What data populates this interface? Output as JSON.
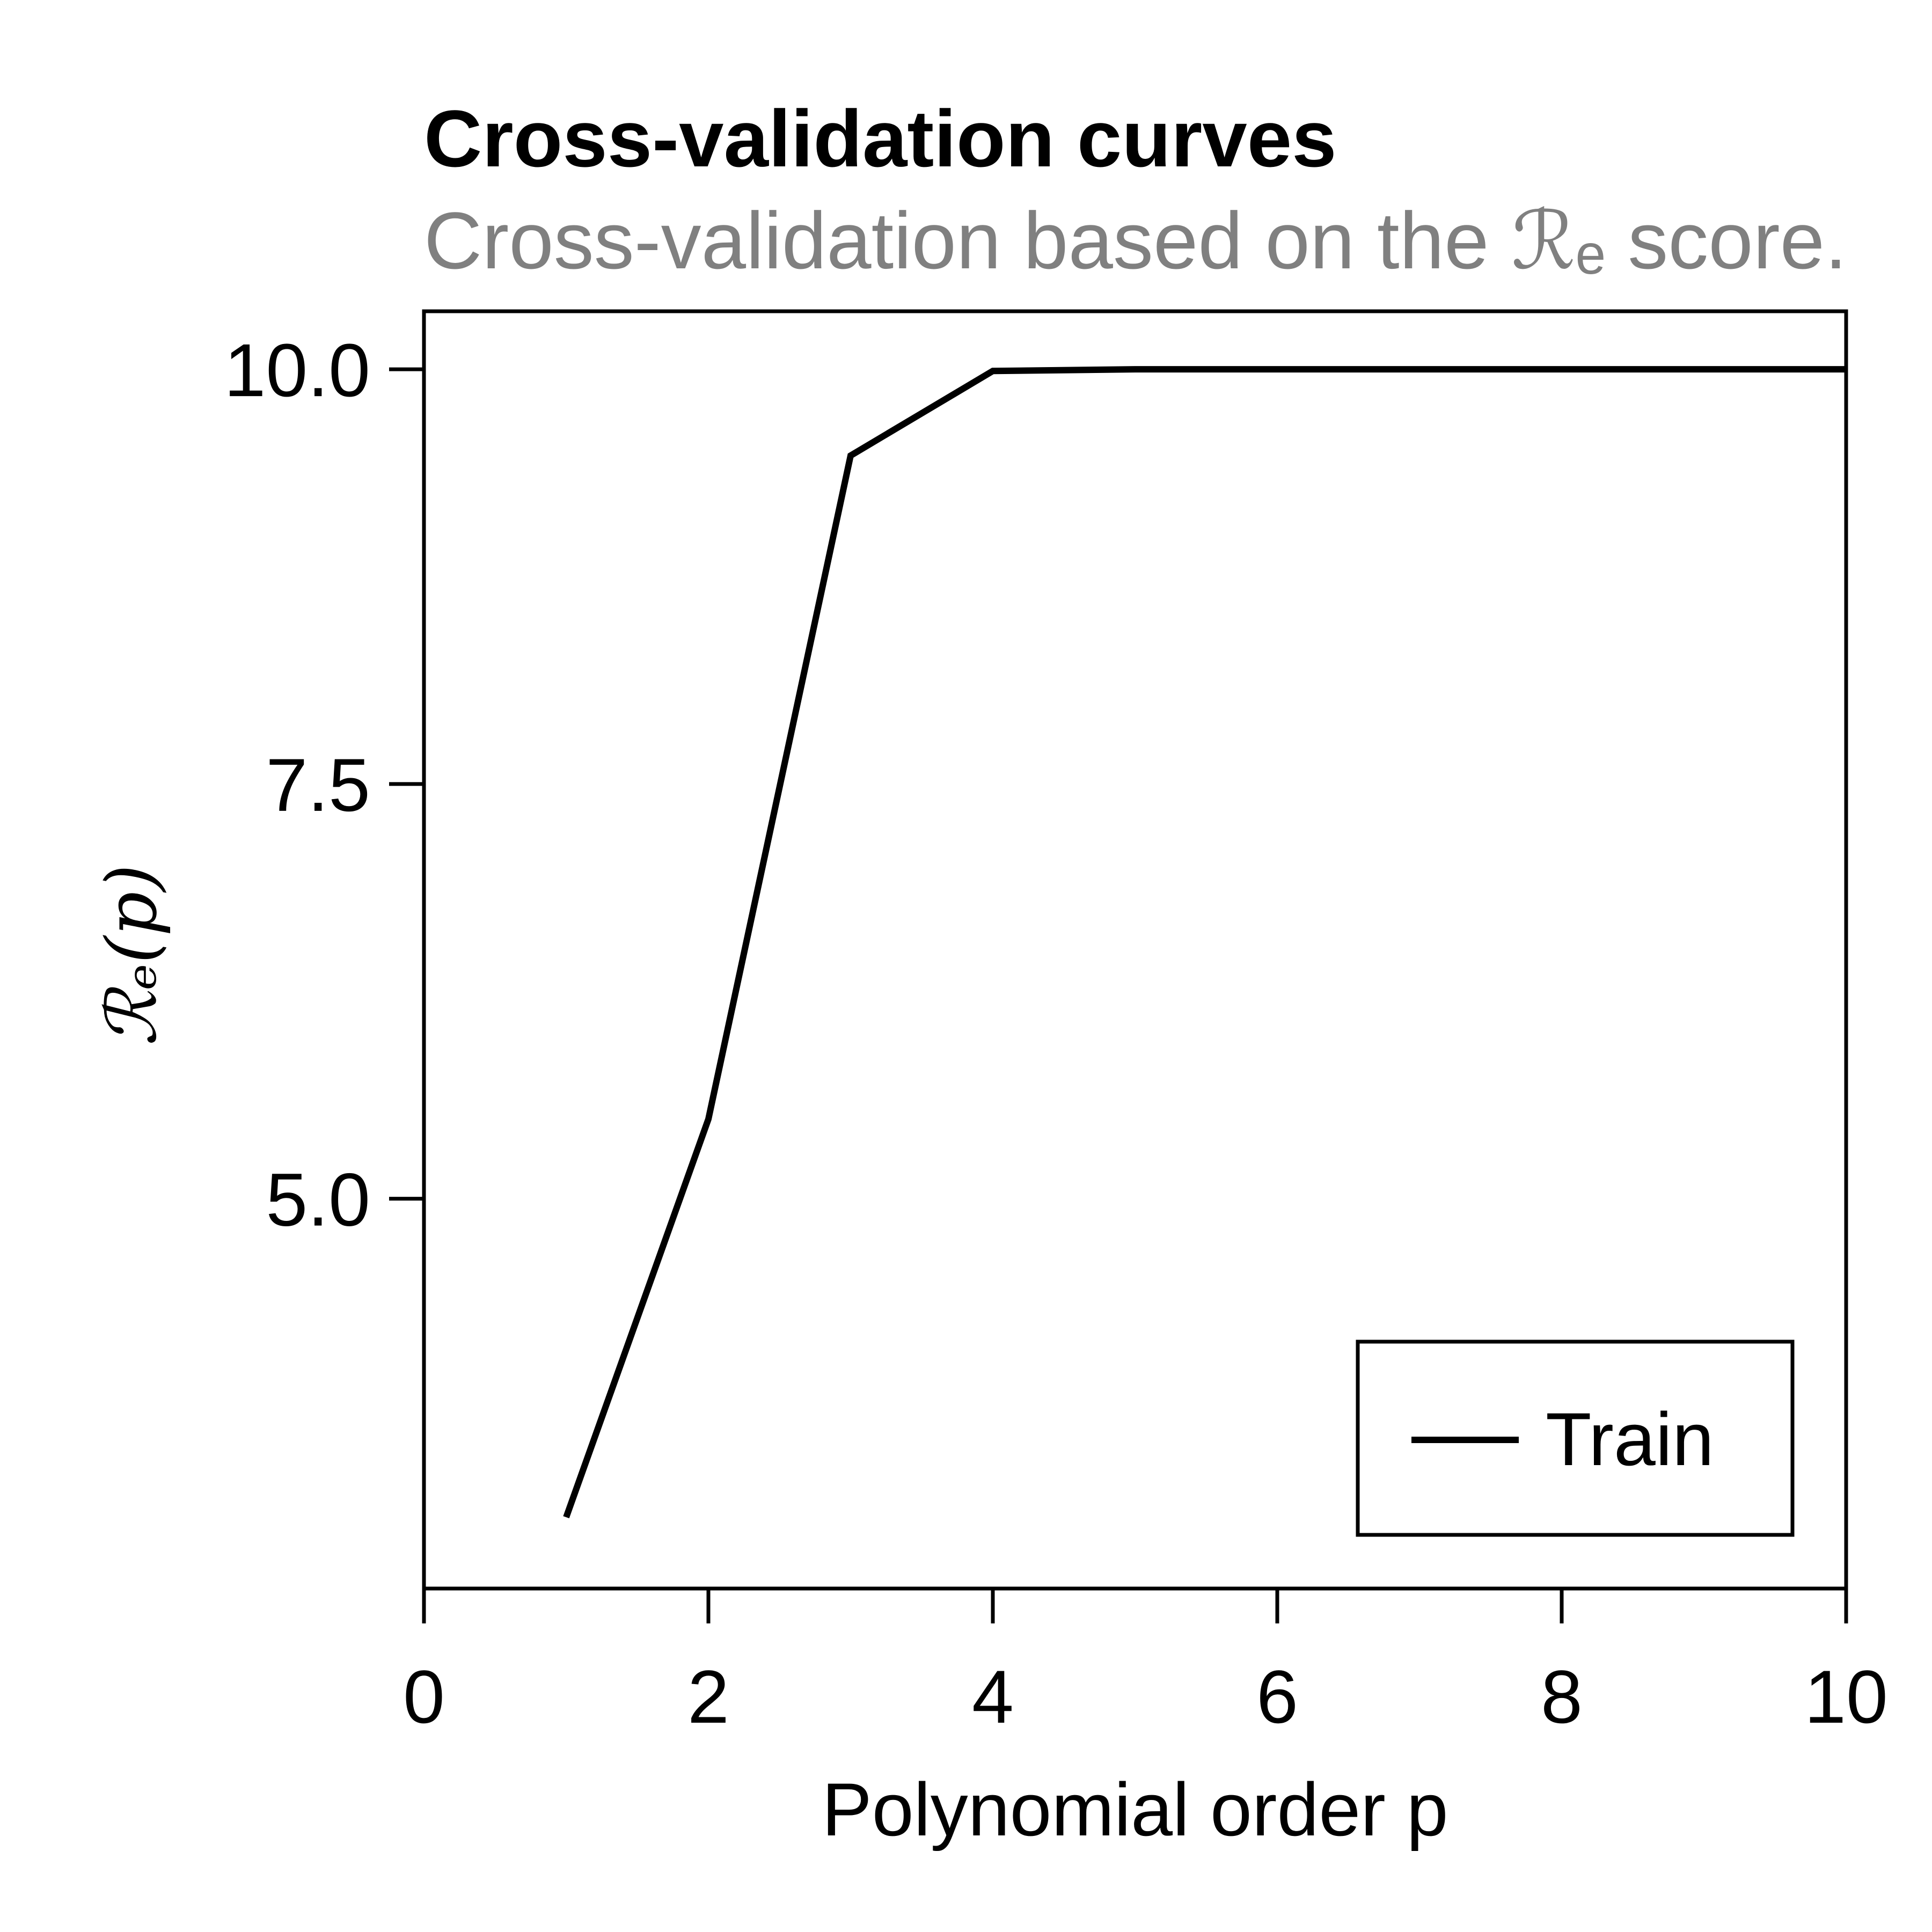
{
  "chart_data": {
    "type": "line",
    "title": "Cross-validation curves",
    "subtitle": "Cross-validation based on the ℛₑ score.",
    "xlabel": "Polynomial order p",
    "ylabel": "ℛₑ(p)",
    "xlim": [
      0,
      10
    ],
    "ylim": [
      2.65,
      10.35
    ],
    "x_ticks": [
      0,
      2,
      4,
      6,
      8,
      10
    ],
    "x_tick_labels": [
      "0",
      "2",
      "4",
      "6",
      "8",
      "10"
    ],
    "y_ticks": [
      5.0,
      7.5,
      10.0
    ],
    "y_tick_labels": [
      "5.0",
      "7.5",
      "10.0"
    ],
    "grid": false,
    "legend_position": "bottom-right",
    "series": [
      {
        "name": "Train",
        "color": "#000000",
        "x": [
          1,
          2,
          3,
          4,
          5,
          6,
          7,
          8,
          9,
          10
        ],
        "y": [
          3.08,
          5.48,
          9.48,
          9.99,
          10.0,
          10.0,
          10.0,
          10.0,
          10.0,
          10.0
        ]
      }
    ]
  }
}
